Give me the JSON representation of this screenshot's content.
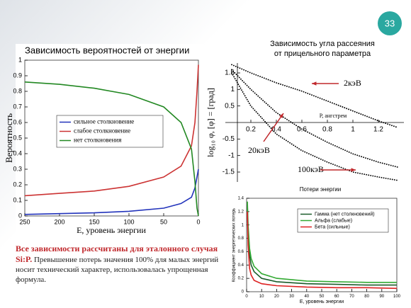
{
  "slide_number": "33",
  "caption": {
    "bold": "Все зависимости рассчитаны для эталонного случая Si:P.",
    "text": "Превышение потерь значения 100% для малых энергий носит технический характер, использовалась упрощенная формула."
  },
  "chart_data": [
    {
      "type": "line",
      "title": "Зависимость вероятностей от энергии",
      "xlabel": "E, уровень энергии",
      "ylabel": "Вероятность",
      "x": [
        250,
        200,
        150,
        100,
        50,
        25,
        10,
        5,
        2,
        0
      ],
      "series": [
        {
          "name": "сильное столкновение",
          "color": "#2233bb",
          "values": [
            0.01,
            0.015,
            0.02,
            0.03,
            0.05,
            0.08,
            0.12,
            0.18,
            0.25,
            0.3
          ]
        },
        {
          "name": "слабое столкновение",
          "color": "#cc3333",
          "values": [
            0.13,
            0.145,
            0.16,
            0.19,
            0.25,
            0.32,
            0.45,
            0.6,
            0.8,
            0.97
          ]
        },
        {
          "name": "нет столкновения",
          "color": "#228822",
          "values": [
            0.86,
            0.845,
            0.82,
            0.78,
            0.7,
            0.6,
            0.43,
            0.22,
            0.05,
            0
          ]
        }
      ],
      "xlim": [
        250,
        0
      ],
      "xticks": [
        250,
        200,
        150,
        100,
        50,
        0
      ],
      "ylim": [
        0,
        1
      ],
      "yticks": [
        0,
        0.1,
        0.2,
        0.3,
        0.4,
        0.5,
        0.6,
        0.7,
        0.8,
        0.9,
        1
      ],
      "legend": "center"
    },
    {
      "type": "line",
      "title": "Зависимость угла рассеяния от прицельного параметра",
      "xlabel": "P, ангстрем",
      "ylabel": "log₁₀ φ,  [φ] = [град]",
      "x": [
        0.05,
        0.2,
        0.4,
        0.6,
        0.8,
        1.0,
        1.2,
        1.35
      ],
      "series": [
        {
          "name": "2кэВ",
          "color": "#000000",
          "values": [
            1.75,
            1.5,
            1.2,
            0.95,
            0.65,
            0.35,
            0.05,
            -0.15
          ]
        },
        {
          "name": "20кэВ",
          "color": "#000000",
          "values": [
            1.6,
            1.0,
            0.3,
            -0.2,
            -0.6,
            -0.95,
            -1.2,
            -1.35
          ]
        },
        {
          "name": "100кэВ",
          "color": "#000000",
          "values": [
            1.5,
            0.5,
            -0.35,
            -0.85,
            -1.2,
            -1.5,
            -1.65,
            -1.75
          ]
        }
      ],
      "xlim": [
        0,
        1.4
      ],
      "xticks": [
        0.2,
        0.4,
        0.6,
        0.8,
        1,
        1.2
      ],
      "ylim": [
        -1.8,
        1.8
      ],
      "yticks": [
        -1.5,
        -1,
        -0.5,
        0.5,
        1,
        1.5
      ],
      "line_style": "dotted"
    },
    {
      "type": "line",
      "title": "Потери энергии",
      "xlabel": "E, уровень энергии",
      "ylabel": "Коэффициент энергетических потерь",
      "x": [
        0.5,
        1,
        2,
        3,
        5,
        10,
        20,
        40,
        60,
        80,
        100
      ],
      "series": [
        {
          "name": "Гамма (нет столкновений)",
          "color": "#1a5c2a",
          "values": [
            1.3,
            0.9,
            0.55,
            0.4,
            0.3,
            0.2,
            0.15,
            0.12,
            0.11,
            0.1,
            0.1
          ]
        },
        {
          "name": "Альфа (слабые)",
          "color": "#33aa33",
          "values": [
            1.35,
            1.0,
            0.65,
            0.5,
            0.38,
            0.27,
            0.2,
            0.16,
            0.15,
            0.14,
            0.14
          ]
        },
        {
          "name": "Бета (сильные)",
          "color": "#dd2222",
          "values": [
            1.2,
            0.7,
            0.35,
            0.25,
            0.17,
            0.12,
            0.09,
            0.07,
            0.06,
            0.06,
            0.05
          ]
        }
      ],
      "xlim": [
        0,
        100
      ],
      "xticks": [
        0,
        10,
        20,
        30,
        40,
        50,
        60,
        70,
        80,
        90,
        100
      ],
      "ylim": [
        0,
        1.4
      ],
      "yticks": [
        0,
        0.2,
        0.4,
        0.6,
        0.8,
        1,
        1.2,
        1.4
      ],
      "legend": "upper right"
    }
  ]
}
